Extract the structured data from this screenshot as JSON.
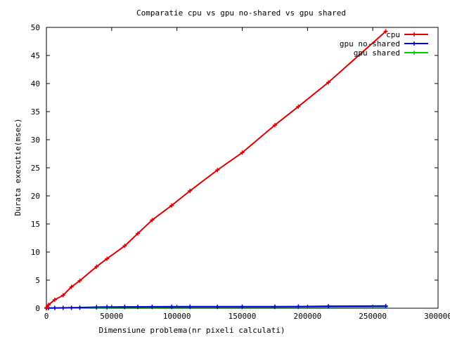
{
  "chart_data": {
    "type": "line",
    "title": "Comparatie cpu vs gpu no-shared vs gpu shared",
    "xlabel": "Dimensiune problema(nr pixeli calculati)",
    "ylabel": "Durata executie(msec)",
    "xlim": [
      0,
      300000
    ],
    "ylim": [
      0,
      50
    ],
    "x_ticks": [
      "0",
      "50000",
      "100000",
      "150000",
      "200000",
      "250000",
      "300000"
    ],
    "y_ticks": [
      "0",
      "5",
      "10",
      "15",
      "20",
      "25",
      "30",
      "35",
      "40",
      "45",
      "50"
    ],
    "grid": false,
    "legend_position": "top-right",
    "series": [
      {
        "name": "cpu",
        "color": "#e00000",
        "x": [
          0,
          1600,
          6400,
          12800,
          19200,
          25600,
          38400,
          46400,
          60000,
          70000,
          81000,
          96000,
          110000,
          131000,
          150000,
          175000,
          193000,
          216000,
          260000
        ],
        "y": [
          0.1,
          0.6,
          1.5,
          2.3,
          3.8,
          4.9,
          7.4,
          8.8,
          11.1,
          13.3,
          15.7,
          18.3,
          20.9,
          24.6,
          27.7,
          32.6,
          35.9,
          40.2,
          49.3
        ]
      },
      {
        "name": "gpu no-shared",
        "color": "#0000e0",
        "x": [
          0,
          1600,
          6400,
          12800,
          19200,
          25600,
          38400,
          46400,
          60000,
          70000,
          81000,
          96000,
          110000,
          131000,
          150000,
          175000,
          193000,
          216000,
          260000
        ],
        "y": [
          0.02,
          0.03,
          0.05,
          0.07,
          0.09,
          0.11,
          0.2,
          0.22,
          0.24,
          0.25,
          0.26,
          0.27,
          0.27,
          0.27,
          0.28,
          0.28,
          0.3,
          0.36,
          0.4
        ]
      },
      {
        "name": "gpu shared",
        "color": "#00d000",
        "x": [
          0,
          1600,
          6400,
          12800,
          19200,
          25600,
          38400,
          46400,
          60000,
          70000,
          81000,
          96000,
          110000,
          131000,
          150000,
          175000,
          193000,
          216000,
          260000
        ],
        "y": [
          0.02,
          0.03,
          0.04,
          0.05,
          0.06,
          0.08,
          0.12,
          0.14,
          0.17,
          0.18,
          0.18,
          0.19,
          0.2,
          0.2,
          0.2,
          0.2,
          0.21,
          0.22,
          0.24
        ]
      }
    ]
  }
}
